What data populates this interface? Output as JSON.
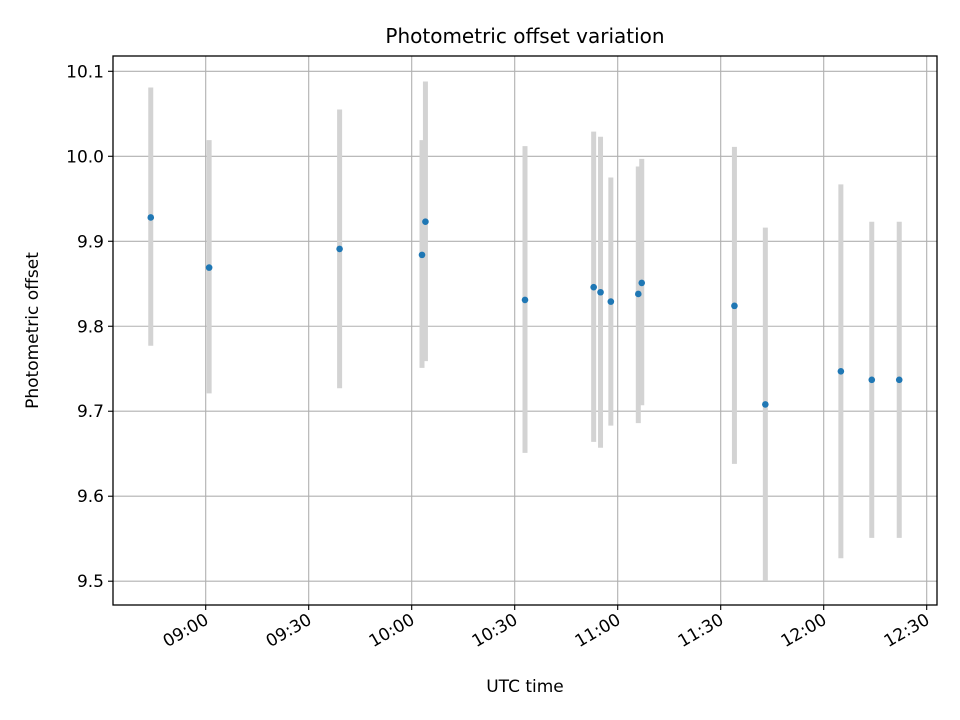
{
  "chart_data": {
    "type": "scatter",
    "title": "Photometric offset variation",
    "xlabel": "UTC time",
    "ylabel": "Photometric offset",
    "grid": true,
    "xlim": [
      "08:33",
      "12:33"
    ],
    "ylim": [
      9.472,
      10.118
    ],
    "x_ticks": [
      "09:00",
      "09:30",
      "10:00",
      "10:30",
      "11:00",
      "11:30",
      "12:00",
      "12:30"
    ],
    "y_ticks": [
      "9.5",
      "9.6",
      "9.7",
      "9.8",
      "9.9",
      "10.0",
      "10.1"
    ],
    "point_color": "#1f77b4",
    "errorbar_color": "#d3d3d3",
    "points": [
      {
        "x": "08:44",
        "y": 9.928,
        "low": 9.777,
        "high": 10.081
      },
      {
        "x": "09:01",
        "y": 9.869,
        "low": 9.721,
        "high": 10.019
      },
      {
        "x": "09:39",
        "y": 9.891,
        "low": 9.727,
        "high": 10.055
      },
      {
        "x": "10:03",
        "y": 9.884,
        "low": 9.751,
        "high": 10.019
      },
      {
        "x": "10:04",
        "y": 9.923,
        "low": 9.759,
        "high": 10.088
      },
      {
        "x": "10:33",
        "y": 9.831,
        "low": 9.651,
        "high": 10.012
      },
      {
        "x": "10:53",
        "y": 9.846,
        "low": 9.664,
        "high": 10.029
      },
      {
        "x": "10:55",
        "y": 9.84,
        "low": 9.657,
        "high": 10.023
      },
      {
        "x": "10:58",
        "y": 9.829,
        "low": 9.683,
        "high": 9.975
      },
      {
        "x": "11:06",
        "y": 9.838,
        "low": 9.686,
        "high": 9.988
      },
      {
        "x": "11:07",
        "y": 9.851,
        "low": 9.707,
        "high": 9.997
      },
      {
        "x": "11:34",
        "y": 9.824,
        "low": 9.638,
        "high": 10.011
      },
      {
        "x": "11:43",
        "y": 9.708,
        "low": 9.501,
        "high": 9.916
      },
      {
        "x": "12:05",
        "y": 9.747,
        "low": 9.527,
        "high": 9.967
      },
      {
        "x": "12:14",
        "y": 9.737,
        "low": 9.551,
        "high": 9.923
      },
      {
        "x": "12:22",
        "y": 9.737,
        "low": 9.551,
        "high": 9.923
      }
    ]
  }
}
